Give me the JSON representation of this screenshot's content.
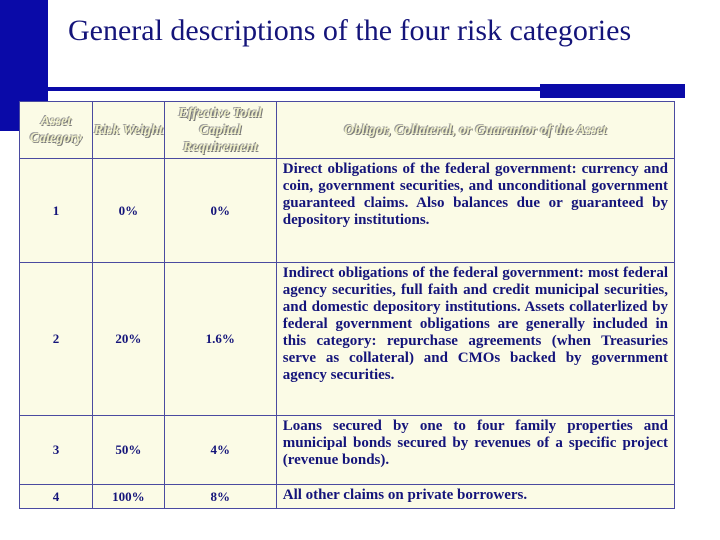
{
  "slide": {
    "title": "General descriptions of the four risk categories"
  },
  "table": {
    "headers": [
      "Asset Category",
      "Risk Weight",
      "Effective Total Capital Requirement",
      "Obligor, Collateral, or Guarantor of the Asset"
    ],
    "rows": [
      {
        "category": "1",
        "risk_weight": "0%",
        "capital": "0%",
        "description": "Direct obligations of the federal government: currency and coin, government securities, and unconditional government guaranteed claims. Also balances due or guaranteed by depository institutions."
      },
      {
        "category": "2",
        "risk_weight": "20%",
        "capital": "1.6%",
        "description": "Indirect obligations of the federal government: most federal agency securities, full faith and credit municipal securities, and domestic depository institutions. Assets collaterlized by federal government obligations are generally included in this category: repurchase agreements (when Treasuries serve as collateral) and CMOs backed by government agency securities."
      },
      {
        "category": "3",
        "risk_weight": "50%",
        "capital": "4%",
        "description": "Loans secured by one to four family properties and municipal bonds secured by revenues of a specific project (revenue bonds)."
      },
      {
        "category": "4",
        "risk_weight": "100%",
        "capital": "8%",
        "description": "All other claims on private borrowers."
      }
    ]
  }
}
